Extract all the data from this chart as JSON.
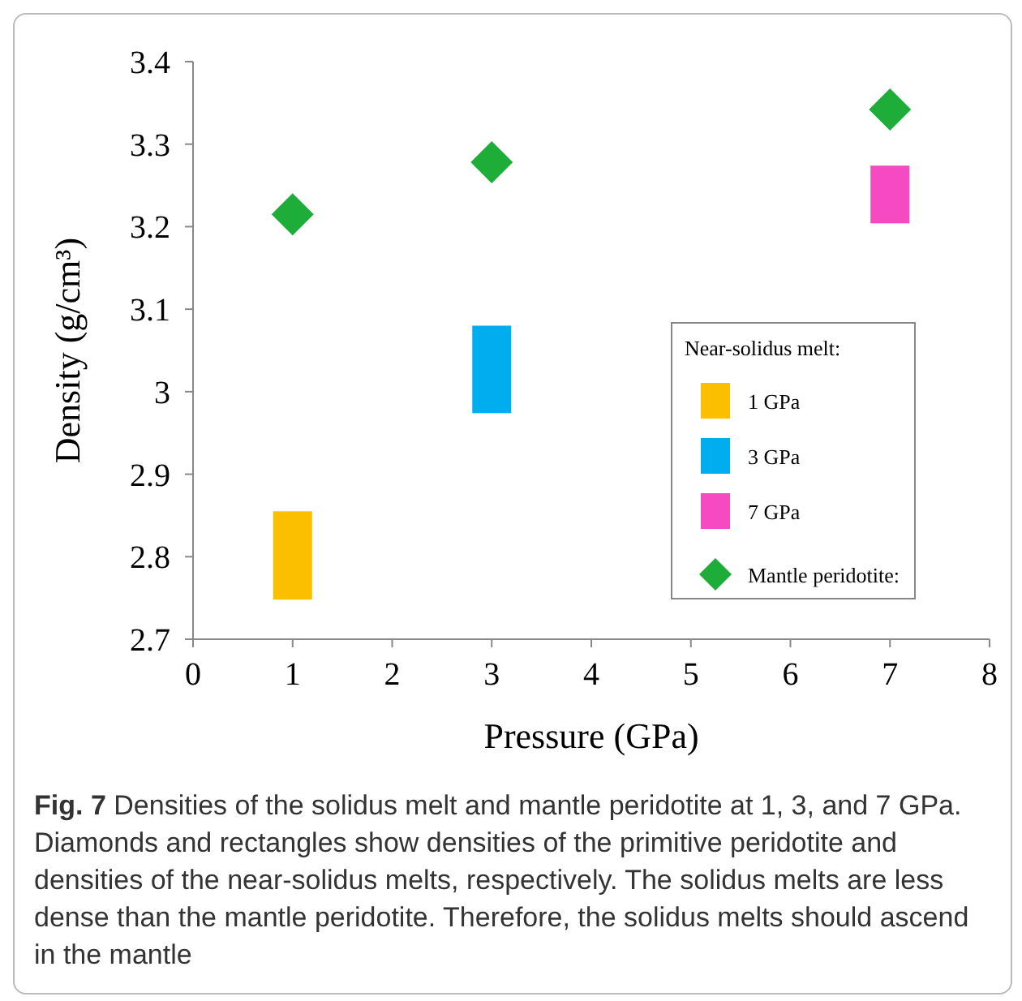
{
  "chart_data": {
    "type": "bar",
    "xlabel": "Pressure (GPa)",
    "ylabel": "Density (g/cm³)",
    "xlim": [
      0,
      8
    ],
    "xticks": [
      0,
      1,
      2,
      3,
      4,
      5,
      6,
      7,
      8
    ],
    "ylim": [
      2.7,
      3.4
    ],
    "yticks": [
      {
        "value": 2.7,
        "label": "2.7"
      },
      {
        "value": 2.8,
        "label": "2.8"
      },
      {
        "value": 2.9,
        "label": "2.9"
      },
      {
        "value": 3,
        "label": "3"
      },
      {
        "value": 3.1,
        "label": "3.1"
      },
      {
        "value": 3.2,
        "label": "3.2"
      },
      {
        "value": 3.3,
        "label": "3.3"
      },
      {
        "value": 3.4,
        "label": "3.4"
      }
    ],
    "grid": false,
    "legend": "right",
    "legend_title": "Near-solidus melt:",
    "series": [
      {
        "name": "1 GPa",
        "color": "#fbbf00",
        "x": [
          1
        ],
        "base": [
          2.748
        ],
        "values": [
          0.107
        ]
      },
      {
        "name": "3 GPa",
        "color": "#00aeef",
        "x": [
          3
        ],
        "base": [
          2.974
        ],
        "values": [
          0.106
        ]
      },
      {
        "name": "7 GPa",
        "color": "#f64ac2",
        "x": [
          7
        ],
        "base": [
          3.204
        ],
        "values": [
          0.07
        ]
      },
      {
        "name": "Mantle peridotite:",
        "type": "scatter",
        "marker": "diamond",
        "color": "#1fad3a",
        "x": [
          1,
          3,
          7
        ],
        "values": [
          3.215,
          3.278,
          3.342
        ]
      }
    ],
    "annotations": [
      "Fig. 7 Densities of the solidus melt and mantle peridotite at 1, 3, and 7 GPa. Diamonds and rectangles show densities of the primitive peridotite and densities of the near-solidus melts, respectively. The solidus melts are less dense than the mantle peridotite. Therefore, the solidus melts should ascend in the mantle"
    ]
  }
}
